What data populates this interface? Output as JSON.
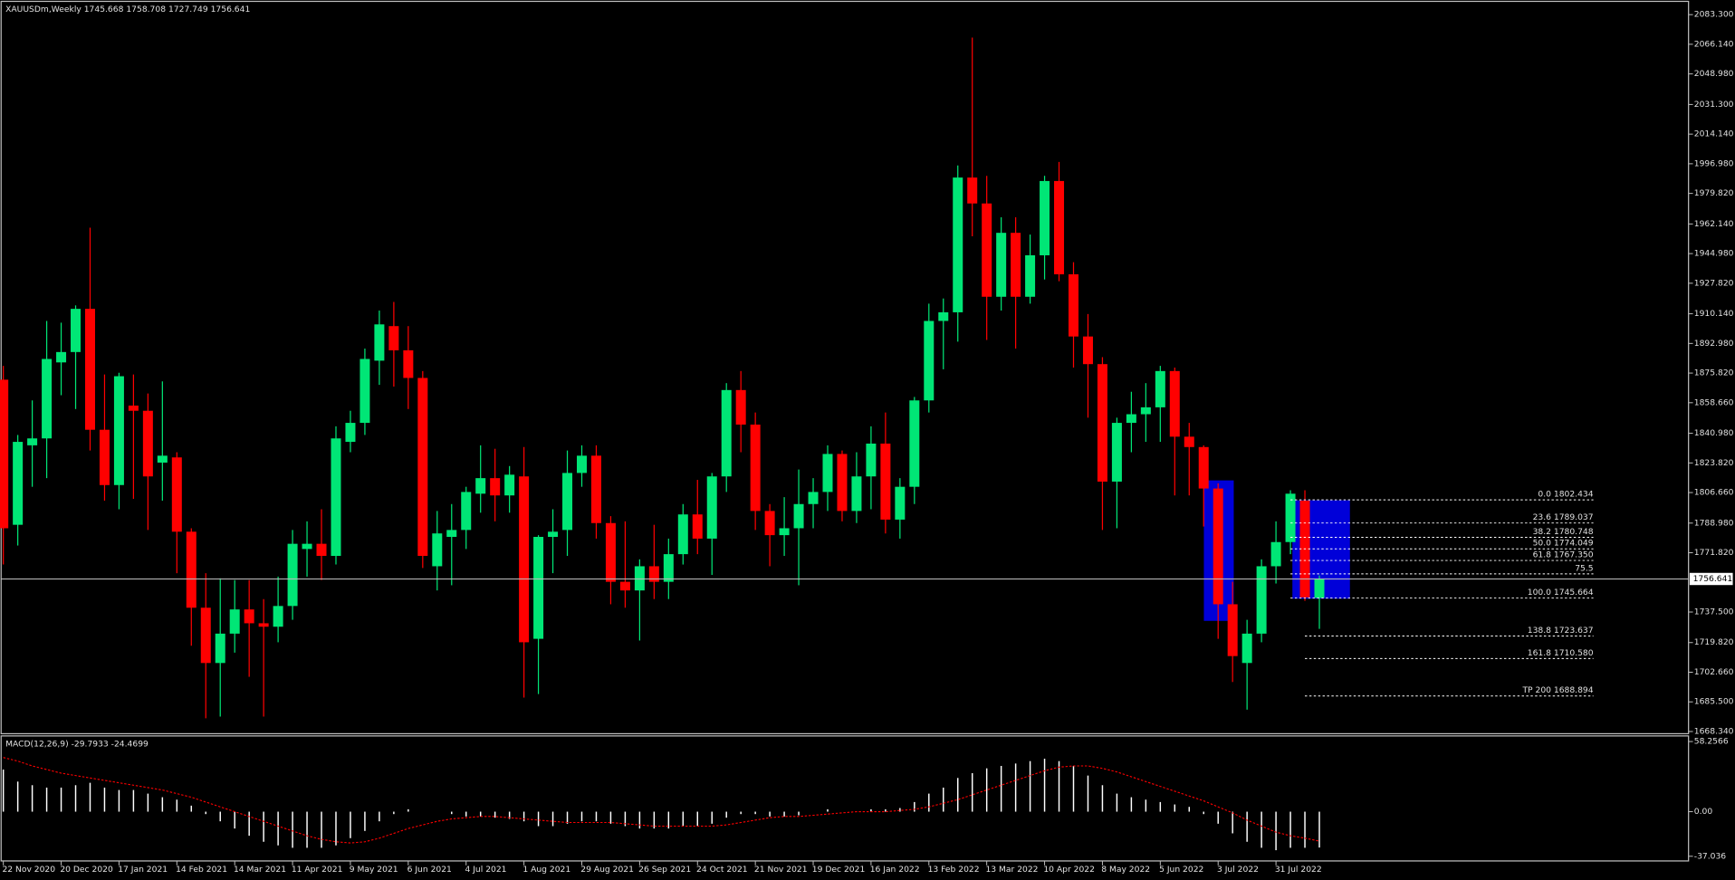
{
  "chart_data": [
    {
      "type": "candlestick",
      "title": "XAUUSDm,Weekly",
      "categories": [
        "22 Nov 2020",
        null,
        null,
        null,
        "20 Dec 2020",
        null,
        null,
        null,
        "17 Jan 2021",
        null,
        null,
        null,
        "14 Feb 2021",
        null,
        null,
        null,
        "14 Mar 2021",
        null,
        null,
        null,
        "11 Apr 2021",
        null,
        null,
        null,
        "9 May 2021",
        null,
        null,
        null,
        "6 Jun 2021",
        null,
        null,
        null,
        "4 Jul 2021",
        null,
        null,
        null,
        "1 Aug 2021",
        null,
        null,
        null,
        "29 Aug 2021",
        null,
        null,
        null,
        "26 Sep 2021",
        null,
        null,
        null,
        "24 Oct 2021",
        null,
        null,
        null,
        "21 Nov 2021",
        null,
        null,
        null,
        "19 Dec 2021",
        null,
        null,
        null,
        "16 Jan 2022",
        null,
        null,
        null,
        "13 Feb 2022",
        null,
        null,
        null,
        "13 Mar 2022",
        null,
        null,
        null,
        "10 Apr 2022",
        null,
        null,
        null,
        "8 May 2022",
        null,
        null,
        null,
        "5 Jun 2022",
        null,
        null,
        null,
        "3 Jul 2022",
        null,
        null,
        null,
        "31 Jul 2022",
        null,
        null,
        null
      ],
      "open": [
        1872,
        1788,
        1834,
        1838,
        1882,
        1888,
        1913,
        1843,
        1811,
        1857,
        1854,
        1824,
        1827,
        1784,
        1740,
        1708,
        1725,
        1739,
        1731,
        1729,
        1741,
        1774,
        1777,
        1770,
        1836,
        1847,
        1883,
        1903,
        1889,
        1873,
        1764,
        1781,
        1785,
        1806,
        1815,
        1805,
        1816,
        1722,
        1781,
        1785,
        1818,
        1828,
        1789,
        1755,
        1750,
        1764,
        1755,
        1771,
        1794,
        1780,
        1816,
        1866,
        1846,
        1796,
        1782,
        1786,
        1800,
        1807,
        1829,
        1796,
        1816,
        1835,
        1791,
        1810,
        1860,
        1906,
        1911,
        1989,
        1974,
        1920,
        1957,
        1920,
        1944,
        1987,
        1933,
        1897,
        1881,
        1813,
        1847,
        1852,
        1856,
        1877,
        1839,
        1833,
        1809,
        1742,
        1708,
        1725,
        1764,
        1778,
        1802,
        1745.668
      ],
      "high": [
        1880,
        1840,
        1860,
        1906,
        1905,
        1915,
        1960,
        1875,
        1876,
        1875,
        1864,
        1871,
        1830,
        1786,
        1760,
        1757,
        1756,
        1756,
        1745,
        1758,
        1785,
        1790,
        1797,
        1845,
        1854,
        1890,
        1912,
        1917,
        1903,
        1877,
        1796,
        1800,
        1810,
        1834,
        1832,
        1822,
        1833,
        1782,
        1797,
        1831,
        1834,
        1834,
        1793,
        1790,
        1768,
        1788,
        1780,
        1800,
        1814,
        1818,
        1870,
        1877,
        1853,
        1800,
        1804,
        1820,
        1815,
        1834,
        1831,
        1830,
        1845,
        1853,
        1815,
        1862,
        1916,
        1919,
        1996,
        2070,
        1990,
        1966,
        1966,
        1956,
        1990,
        1998,
        1940,
        1910,
        1885,
        1850,
        1865,
        1870,
        1880,
        1879,
        1847,
        1834,
        1812,
        1755,
        1733,
        1768,
        1790,
        1808,
        1808,
        1758.708
      ],
      "low": [
        1765,
        1776,
        1810,
        1815,
        1863,
        1855,
        1831,
        1802,
        1797,
        1803,
        1785,
        1802,
        1760,
        1718,
        1676,
        1677,
        1714,
        1700,
        1677,
        1720,
        1733,
        1758,
        1756,
        1765,
        1830,
        1840,
        1869,
        1868,
        1855,
        1763,
        1750,
        1753,
        1774,
        1795,
        1790,
        1795,
        1688,
        1690,
        1760,
        1770,
        1810,
        1780,
        1742,
        1740,
        1721,
        1745,
        1745,
        1765,
        1771,
        1759,
        1807,
        1830,
        1785,
        1764,
        1770,
        1753,
        1786,
        1796,
        1790,
        1789,
        1797,
        1783,
        1780,
        1800,
        1853,
        1878,
        1894,
        1955,
        1895,
        1912,
        1890,
        1916,
        1930,
        1929,
        1879,
        1850,
        1785,
        1786,
        1830,
        1836,
        1836,
        1805,
        1805,
        1787,
        1722,
        1697,
        1681,
        1720,
        1754,
        1771,
        1744,
        1727.749
      ],
      "close": [
        1786,
        1836,
        1838,
        1884,
        1888,
        1913,
        1843,
        1811,
        1874,
        1854,
        1816,
        1828,
        1784,
        1740,
        1708,
        1725,
        1739,
        1731,
        1729,
        1741,
        1777,
        1777,
        1770,
        1838,
        1847,
        1884,
        1904,
        1889,
        1873,
        1770,
        1783,
        1785,
        1807,
        1815,
        1805,
        1817,
        1720,
        1781,
        1784,
        1818,
        1828,
        1789,
        1755,
        1750,
        1764,
        1755,
        1771,
        1794,
        1780,
        1816,
        1866,
        1846,
        1796,
        1782,
        1786,
        1800,
        1807,
        1829,
        1796,
        1816,
        1835,
        1791,
        1810,
        1860,
        1906,
        1911,
        1989,
        1974,
        1920,
        1957,
        1920,
        1944,
        1987,
        1933,
        1897,
        1881,
        1813,
        1847,
        1852,
        1856,
        1877,
        1839,
        1833,
        1809,
        1742,
        1712,
        1725,
        1764,
        1778,
        1806,
        1746,
        1756.641
      ],
      "up_color": "#00e676",
      "down_color": "#ff0000",
      "ylim": [
        1667,
        2090
      ],
      "yticks": [
        {
          "value": 2083.3,
          "label": "2083.300"
        },
        {
          "value": 2066.14,
          "label": "2066.140"
        },
        {
          "value": 2048.98,
          "label": "2048.980"
        },
        {
          "value": 2031.3,
          "label": "2031.300"
        },
        {
          "value": 2014.14,
          "label": "2014.140"
        },
        {
          "value": 1996.98,
          "label": "1996.980"
        },
        {
          "value": 1979.82,
          "label": "1979.820"
        },
        {
          "value": 1962.14,
          "label": "1962.140"
        },
        {
          "value": 1944.98,
          "label": "1944.980"
        },
        {
          "value": 1927.82,
          "label": "1927.820"
        },
        {
          "value": 1910.14,
          "label": "1910.140"
        },
        {
          "value": 1892.98,
          "label": "1892.980"
        },
        {
          "value": 1875.82,
          "label": "1875.820"
        },
        {
          "value": 1858.66,
          "label": "1858.660"
        },
        {
          "value": 1840.98,
          "label": "1840.980"
        },
        {
          "value": 1823.82,
          "label": "1823.820"
        },
        {
          "value": 1806.66,
          "label": "1806.660"
        },
        {
          "value": 1788.98,
          "label": "1788.980"
        },
        {
          "value": 1771.82,
          "label": "1771.820"
        },
        {
          "value": 1737.5,
          "label": "1737.500"
        },
        {
          "value": 1719.82,
          "label": "1719.820"
        },
        {
          "value": 1702.66,
          "label": "1702.660"
        },
        {
          "value": 1685.5,
          "label": "1685.500"
        },
        {
          "value": 1668.34,
          "label": "1668.340"
        }
      ],
      "current_price": 1756.641,
      "fib": [
        {
          "value": 1802.434,
          "label": "0.0 1802.434"
        },
        {
          "value": 1789.037,
          "label": "23.6 1789.037"
        },
        {
          "value": 1780.748,
          "label": "38.2 1780.748"
        },
        {
          "value": 1774.049,
          "label": "50.0 1774.049"
        },
        {
          "value": 1767.35,
          "label": "61.8 1767.350"
        },
        {
          "value": 1759.57,
          "label": "75.5"
        },
        {
          "value": 1745.664,
          "label": "100.0 1745.664"
        },
        {
          "value": 1723.637,
          "label": "138.8 1723.637"
        },
        {
          "value": 1710.58,
          "label": "161.8 1710.580"
        },
        {
          "value": 1688.894,
          "label": "TP 200 1688.894"
        }
      ]
    },
    {
      "type": "macd",
      "title": "MACD(12,26,9)",
      "values": [
        35,
        25,
        22,
        20,
        20,
        22,
        24,
        20,
        18,
        18,
        15,
        12,
        10,
        5,
        -2,
        -8,
        -14,
        -20,
        -25,
        -28,
        -30,
        -30,
        -30,
        -28,
        -22,
        -16,
        -8,
        -2,
        2,
        0,
        0,
        -2,
        -4,
        -4,
        -5,
        -6,
        -8,
        -12,
        -12,
        -10,
        -8,
        -8,
        -10,
        -12,
        -14,
        -14,
        -14,
        -12,
        -12,
        -10,
        -5,
        -2,
        -2,
        -4,
        -4,
        -3,
        0,
        2,
        0,
        0,
        2,
        2,
        3,
        8,
        15,
        20,
        28,
        32,
        36,
        38,
        40,
        42,
        44,
        42,
        38,
        30,
        22,
        15,
        12,
        10,
        8,
        6,
        4,
        -2,
        -10,
        -18,
        -25,
        -30,
        -32,
        -30,
        -30,
        -29.7933
      ],
      "signal": [
        45,
        42,
        38,
        35,
        32,
        30,
        28,
        26,
        24,
        22,
        20,
        18,
        15,
        12,
        8,
        4,
        0,
        -4,
        -8,
        -12,
        -16,
        -20,
        -23,
        -25,
        -26,
        -25,
        -22,
        -18,
        -14,
        -11,
        -8,
        -6,
        -5,
        -4,
        -4,
        -5,
        -6,
        -7,
        -8,
        -9,
        -9,
        -9,
        -9,
        -10,
        -11,
        -12,
        -12,
        -12,
        -12,
        -12,
        -11,
        -9,
        -7,
        -5,
        -4,
        -4,
        -3,
        -2,
        -1,
        0,
        0,
        0,
        1,
        2,
        4,
        7,
        10,
        14,
        18,
        22,
        26,
        30,
        34,
        37,
        38,
        38,
        36,
        33,
        29,
        25,
        21,
        17,
        13,
        9,
        4,
        -1,
        -7,
        -12,
        -17,
        -20,
        -22,
        -24.4699
      ],
      "bar_color": "#ffffff",
      "signal_color": "#ff0000",
      "ylim": [
        -40,
        62
      ],
      "yticks": [
        58.2566,
        {
          "value": 0,
          "label": "0.00"
        },
        -37.036
      ]
    }
  ]
}
